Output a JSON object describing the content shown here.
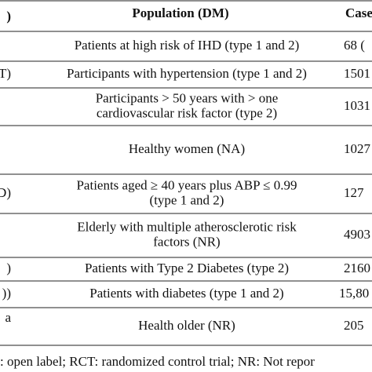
{
  "table": {
    "header": {
      "left": ")",
      "population": "Population (DM)",
      "cases": "Case"
    },
    "rows": [
      {
        "population": [
          "Patients at high risk of IHD (type 1 and 2)"
        ],
        "cases": "68 ("
      },
      {
        "left": "T)",
        "population": [
          "Participants with hypertension (type 1 and 2)"
        ],
        "cases": "1501"
      },
      {
        "population": [
          "Participants > 50 years with > one",
          "cardiovascular risk factor (type 2)"
        ],
        "cases": "1031"
      },
      {
        "population": [
          "Healthy women (NA)"
        ],
        "cases": "1027"
      },
      {
        "left": "D)",
        "population": [
          "Patients aged ≥ 40 years plus ABP ≤ 0.99",
          "(type 1 and 2)"
        ],
        "cases": "127"
      },
      {
        "population": [
          "Elderly with multiple atherosclerotic risk",
          "factors (NR)"
        ],
        "cases": "4903"
      },
      {
        "left": ")",
        "population": [
          "Patients with Type 2 Diabetes (type 2)"
        ],
        "cases": "2160"
      },
      {
        "left": "))",
        "population": [
          "Patients with diabetes (type 1 and 2)"
        ],
        "cases": "15,80"
      },
      {
        "left": "a",
        "population": [
          "Health older (NR)"
        ],
        "cases": "205"
      }
    ],
    "footnote": ": open label; RCT: randomized control trial; NR: Not repor"
  }
}
